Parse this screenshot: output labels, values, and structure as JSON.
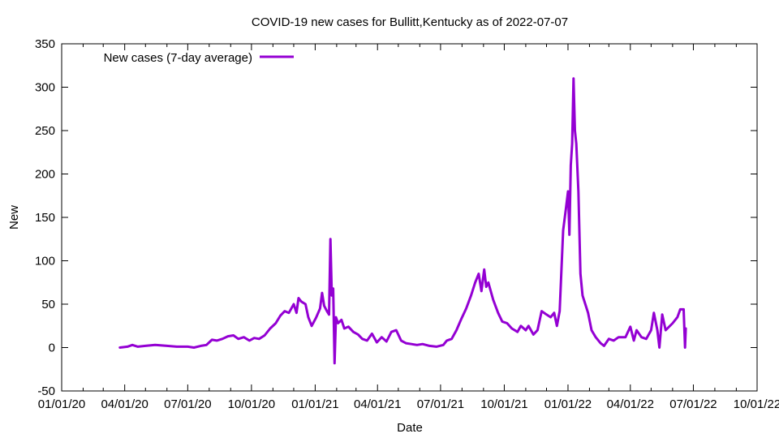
{
  "chart_data": {
    "type": "line",
    "title": "COVID-19 new cases for Bullitt,Kentucky as of 2022-07-07",
    "xlabel": "Date",
    "ylabel": "New",
    "xlim": [
      "2020-01-01",
      "2022-10-01"
    ],
    "ylim": [
      -50,
      350
    ],
    "yticks": [
      -50,
      0,
      50,
      100,
      150,
      200,
      250,
      300,
      350
    ],
    "xticks": [
      {
        "date": "2020-01-01",
        "label": "01/01/20"
      },
      {
        "date": "2020-04-01",
        "label": "04/01/20"
      },
      {
        "date": "2020-07-01",
        "label": "07/01/20"
      },
      {
        "date": "2020-10-01",
        "label": "10/01/20"
      },
      {
        "date": "2021-01-01",
        "label": "01/01/21"
      },
      {
        "date": "2021-04-01",
        "label": "04/01/21"
      },
      {
        "date": "2021-07-01",
        "label": "07/01/21"
      },
      {
        "date": "2021-10-01",
        "label": "10/01/21"
      },
      {
        "date": "2022-01-01",
        "label": "01/01/22"
      },
      {
        "date": "2022-04-01",
        "label": "04/01/22"
      },
      {
        "date": "2022-07-01",
        "label": "07/01/22"
      },
      {
        "date": "2022-10-01",
        "label": "10/01/22"
      }
    ],
    "grid": false,
    "legend_position": "top-left",
    "series": [
      {
        "name": "New cases (7-day average)",
        "color": "#9400d3",
        "points": [
          [
            "2020-03-25",
            0
          ],
          [
            "2020-04-05",
            1
          ],
          [
            "2020-04-12",
            3
          ],
          [
            "2020-04-20",
            1
          ],
          [
            "2020-05-01",
            2
          ],
          [
            "2020-05-15",
            3
          ],
          [
            "2020-06-01",
            2
          ],
          [
            "2020-06-15",
            1
          ],
          [
            "2020-07-01",
            1
          ],
          [
            "2020-07-10",
            0
          ],
          [
            "2020-07-20",
            2
          ],
          [
            "2020-07-28",
            3
          ],
          [
            "2020-08-05",
            9
          ],
          [
            "2020-08-12",
            8
          ],
          [
            "2020-08-20",
            10
          ],
          [
            "2020-08-28",
            13
          ],
          [
            "2020-09-05",
            14
          ],
          [
            "2020-09-12",
            10
          ],
          [
            "2020-09-20",
            12
          ],
          [
            "2020-09-28",
            8
          ],
          [
            "2020-10-05",
            11
          ],
          [
            "2020-10-12",
            10
          ],
          [
            "2020-10-20",
            14
          ],
          [
            "2020-10-28",
            22
          ],
          [
            "2020-11-05",
            28
          ],
          [
            "2020-11-12",
            37
          ],
          [
            "2020-11-18",
            42
          ],
          [
            "2020-11-24",
            40
          ],
          [
            "2020-12-01",
            50
          ],
          [
            "2020-12-05",
            40
          ],
          [
            "2020-12-08",
            57
          ],
          [
            "2020-12-12",
            53
          ],
          [
            "2020-12-18",
            50
          ],
          [
            "2020-12-22",
            35
          ],
          [
            "2020-12-27",
            25
          ],
          [
            "2021-01-02",
            34
          ],
          [
            "2021-01-08",
            45
          ],
          [
            "2021-01-11",
            63
          ],
          [
            "2021-01-14",
            48
          ],
          [
            "2021-01-18",
            42
          ],
          [
            "2021-01-21",
            38
          ],
          [
            "2021-01-23",
            125
          ],
          [
            "2021-01-25",
            60
          ],
          [
            "2021-01-27",
            68
          ],
          [
            "2021-01-29",
            -18
          ],
          [
            "2021-01-31",
            35
          ],
          [
            "2021-02-03",
            28
          ],
          [
            "2021-02-08",
            32
          ],
          [
            "2021-02-12",
            22
          ],
          [
            "2021-02-18",
            24
          ],
          [
            "2021-02-25",
            18
          ],
          [
            "2021-03-04",
            15
          ],
          [
            "2021-03-10",
            10
          ],
          [
            "2021-03-17",
            8
          ],
          [
            "2021-03-24",
            16
          ],
          [
            "2021-03-31",
            6
          ],
          [
            "2021-04-07",
            12
          ],
          [
            "2021-04-14",
            7
          ],
          [
            "2021-04-21",
            18
          ],
          [
            "2021-04-28",
            20
          ],
          [
            "2021-05-05",
            8
          ],
          [
            "2021-05-12",
            5
          ],
          [
            "2021-05-20",
            4
          ],
          [
            "2021-05-28",
            3
          ],
          [
            "2021-06-05",
            4
          ],
          [
            "2021-06-15",
            2
          ],
          [
            "2021-06-25",
            1
          ],
          [
            "2021-07-05",
            3
          ],
          [
            "2021-07-10",
            8
          ],
          [
            "2021-07-17",
            10
          ],
          [
            "2021-07-24",
            20
          ],
          [
            "2021-07-31",
            33
          ],
          [
            "2021-08-07",
            45
          ],
          [
            "2021-08-14",
            60
          ],
          [
            "2021-08-20",
            75
          ],
          [
            "2021-08-25",
            85
          ],
          [
            "2021-08-29",
            65
          ],
          [
            "2021-09-02",
            90
          ],
          [
            "2021-09-05",
            70
          ],
          [
            "2021-09-08",
            75
          ],
          [
            "2021-09-15",
            55
          ],
          [
            "2021-09-22",
            40
          ],
          [
            "2021-09-28",
            30
          ],
          [
            "2021-10-05",
            28
          ],
          [
            "2021-10-12",
            22
          ],
          [
            "2021-10-20",
            18
          ],
          [
            "2021-10-25",
            25
          ],
          [
            "2021-11-01",
            20
          ],
          [
            "2021-11-05",
            25
          ],
          [
            "2021-11-12",
            15
          ],
          [
            "2021-11-18",
            20
          ],
          [
            "2021-11-24",
            42
          ],
          [
            "2021-12-01",
            38
          ],
          [
            "2021-12-07",
            35
          ],
          [
            "2021-12-12",
            40
          ],
          [
            "2021-12-16",
            25
          ],
          [
            "2021-12-20",
            42
          ],
          [
            "2021-12-25",
            135
          ],
          [
            "2021-12-29",
            160
          ],
          [
            "2022-01-01",
            180
          ],
          [
            "2022-01-03",
            130
          ],
          [
            "2022-01-05",
            210
          ],
          [
            "2022-01-07",
            235
          ],
          [
            "2022-01-09",
            310
          ],
          [
            "2022-01-11",
            250
          ],
          [
            "2022-01-13",
            235
          ],
          [
            "2022-01-16",
            180
          ],
          [
            "2022-01-19",
            85
          ],
          [
            "2022-01-22",
            60
          ],
          [
            "2022-01-26",
            50
          ],
          [
            "2022-01-30",
            40
          ],
          [
            "2022-02-04",
            20
          ],
          [
            "2022-02-10",
            12
          ],
          [
            "2022-02-17",
            5
          ],
          [
            "2022-02-22",
            2
          ],
          [
            "2022-03-01",
            10
          ],
          [
            "2022-03-08",
            8
          ],
          [
            "2022-03-15",
            12
          ],
          [
            "2022-03-25",
            12
          ],
          [
            "2022-04-01",
            24
          ],
          [
            "2022-04-06",
            8
          ],
          [
            "2022-04-10",
            20
          ],
          [
            "2022-04-17",
            12
          ],
          [
            "2022-04-24",
            10
          ],
          [
            "2022-05-01",
            20
          ],
          [
            "2022-05-05",
            40
          ],
          [
            "2022-05-10",
            20
          ],
          [
            "2022-05-13",
            0
          ],
          [
            "2022-05-17",
            38
          ],
          [
            "2022-05-22",
            20
          ],
          [
            "2022-06-01",
            28
          ],
          [
            "2022-06-08",
            35
          ],
          [
            "2022-06-12",
            44
          ],
          [
            "2022-06-17",
            44
          ],
          [
            "2022-06-19",
            0
          ],
          [
            "2022-06-20",
            22
          ]
        ]
      }
    ]
  }
}
